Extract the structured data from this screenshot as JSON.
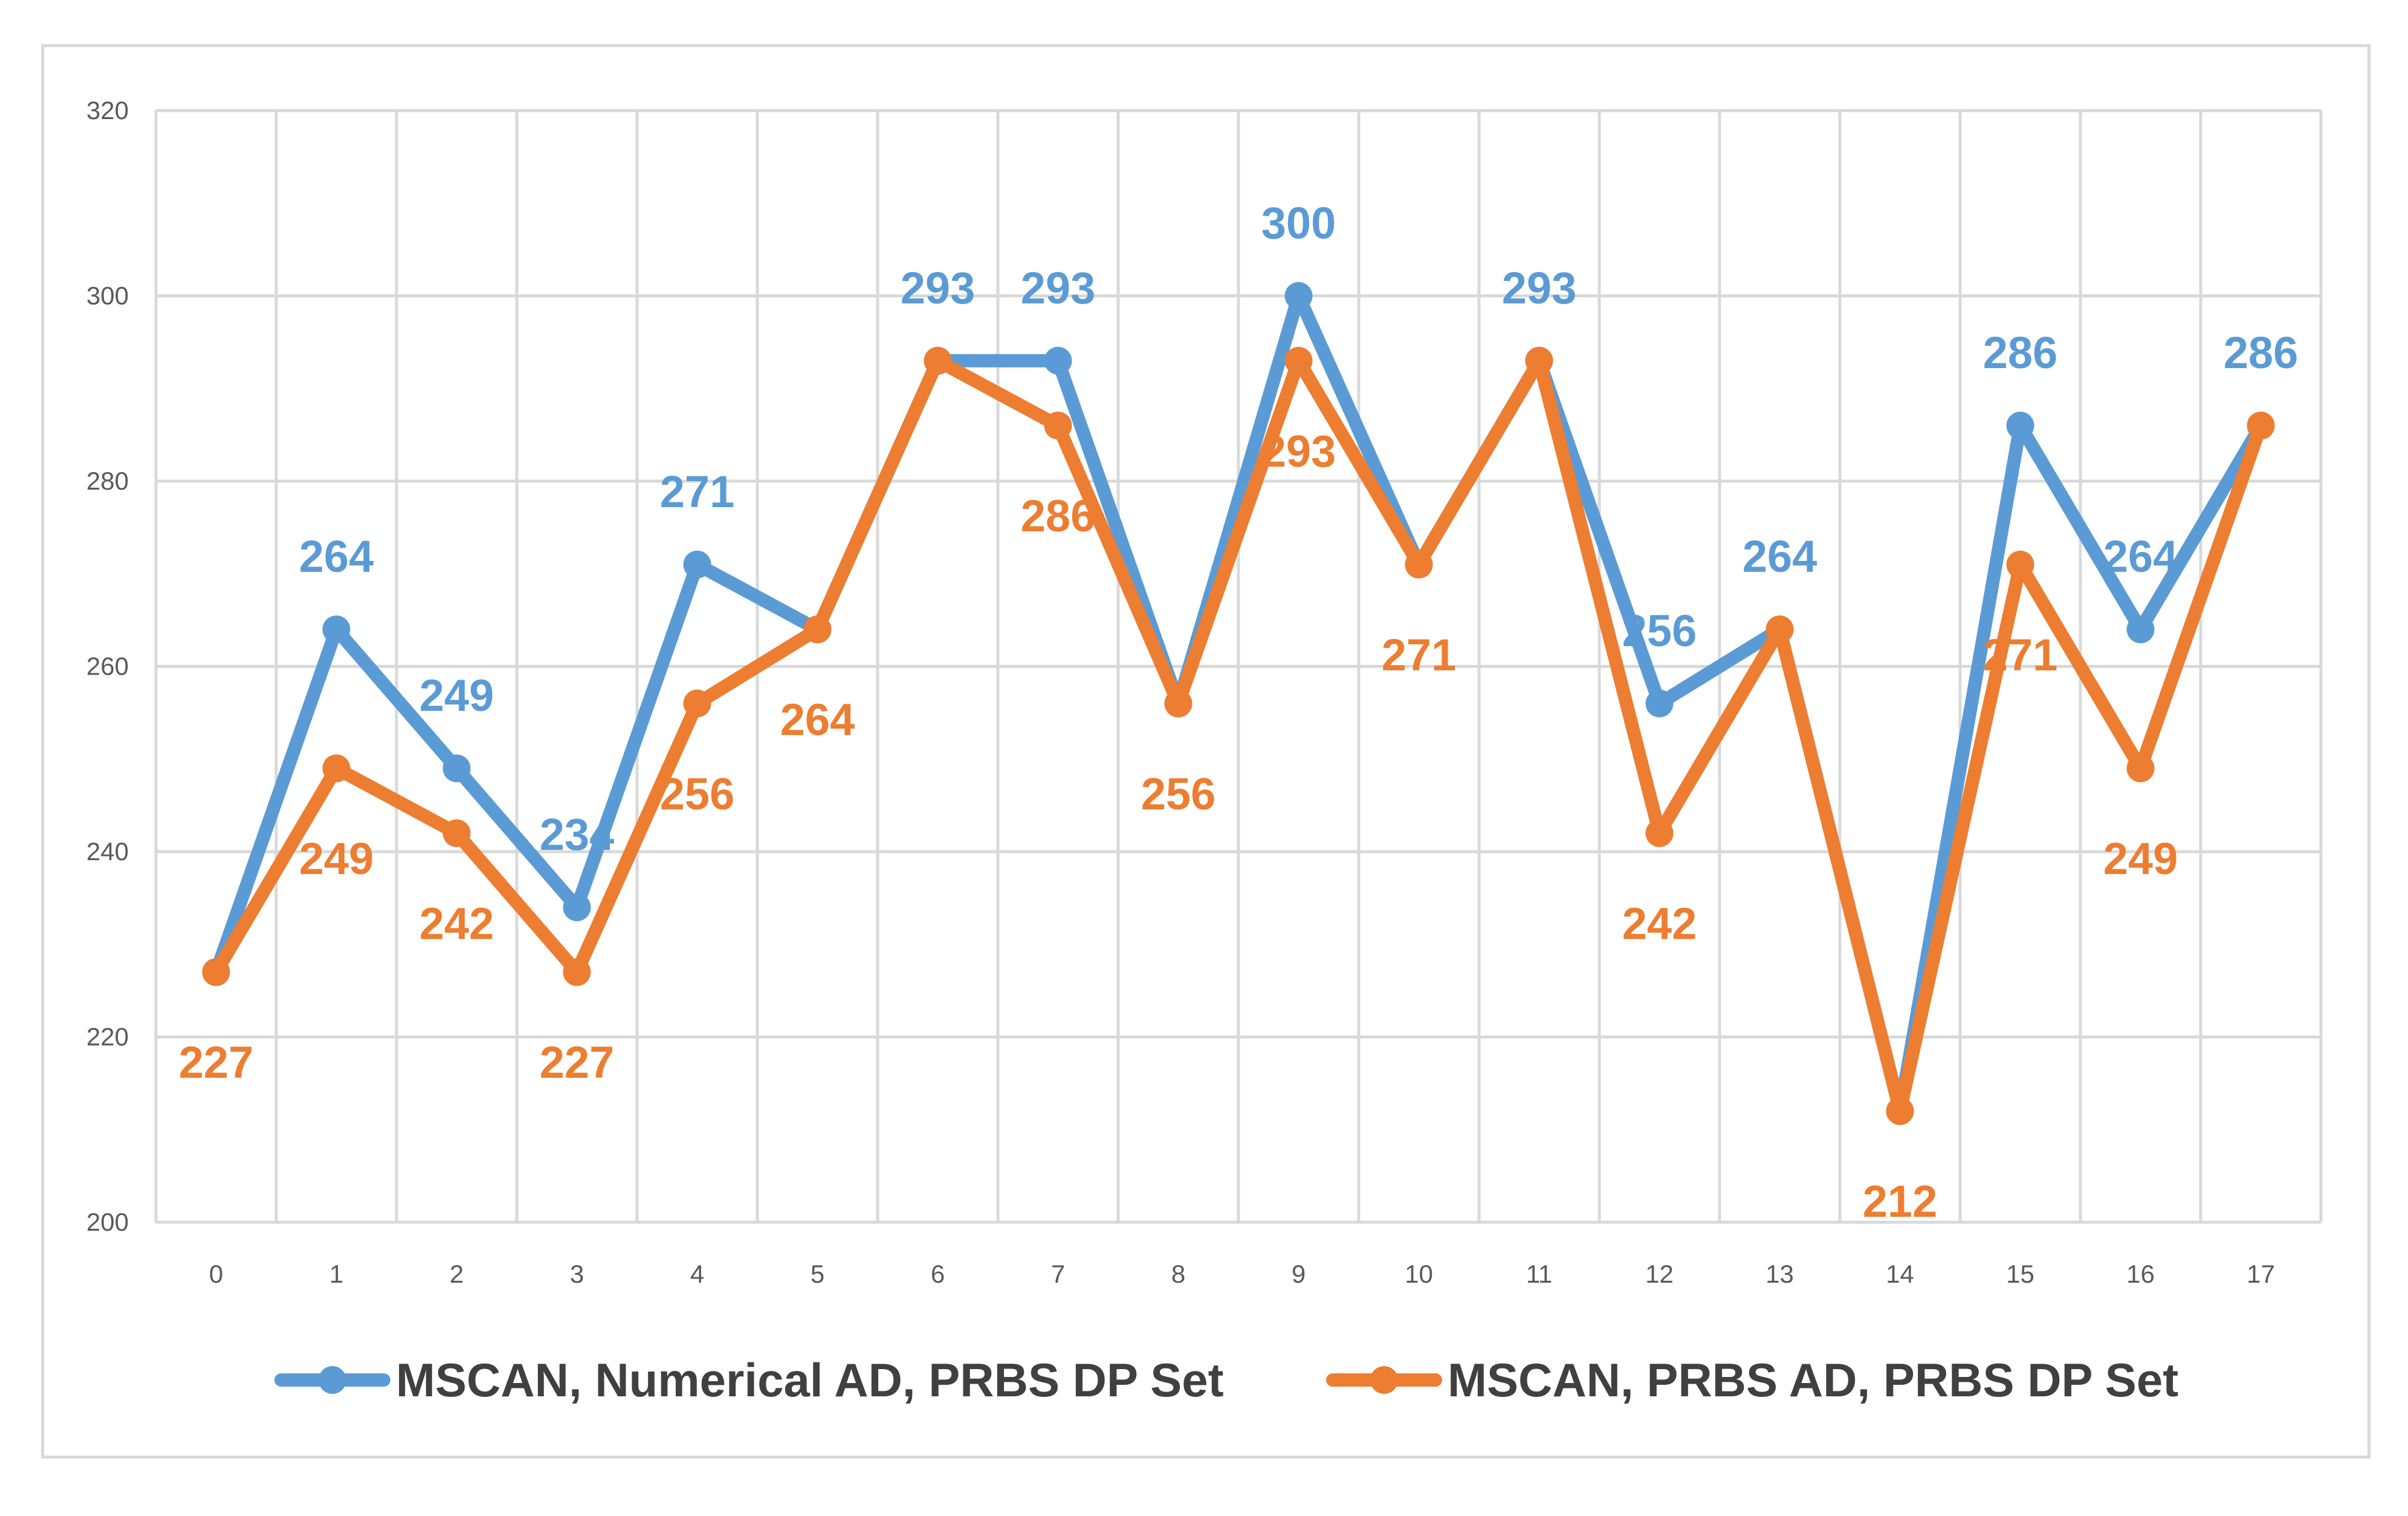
{
  "chart_data": {
    "type": "line",
    "title": "",
    "xlabel": "",
    "ylabel": "",
    "x": [
      0,
      1,
      2,
      3,
      4,
      5,
      6,
      7,
      8,
      9,
      10,
      11,
      12,
      13,
      14,
      15,
      16,
      17
    ],
    "ylim": [
      200,
      320
    ],
    "yticks": [
      200,
      220,
      240,
      260,
      280,
      300,
      320
    ],
    "grid": true,
    "legend_position": "bottom",
    "series": [
      {
        "name": "MSCAN, Numerical AD, PRBS DP Set",
        "color": "#5b9bd5",
        "values": [
          227,
          264,
          249,
          234,
          271,
          264,
          293,
          293,
          256,
          300,
          271,
          293,
          256,
          264,
          212,
          286,
          264,
          286
        ],
        "labels": [
          "",
          "264",
          "249",
          "234",
          "271",
          "",
          "293",
          "293",
          "",
          "300",
          "",
          "293",
          "256",
          "264",
          "",
          "286",
          "264",
          "286"
        ]
      },
      {
        "name": "MSCAN, PRBS AD, PRBS DP Set",
        "color": "#ed7d31",
        "values": [
          227,
          249,
          242,
          227,
          256,
          264,
          293,
          286,
          256,
          293,
          271,
          293,
          242,
          264,
          212,
          271,
          249,
          286
        ],
        "labels": [
          "227",
          "249",
          "242",
          "227",
          "256",
          "264",
          "",
          "286",
          "256",
          "293",
          "271",
          "",
          "242",
          "",
          "212",
          "271",
          "249",
          ""
        ]
      }
    ]
  }
}
